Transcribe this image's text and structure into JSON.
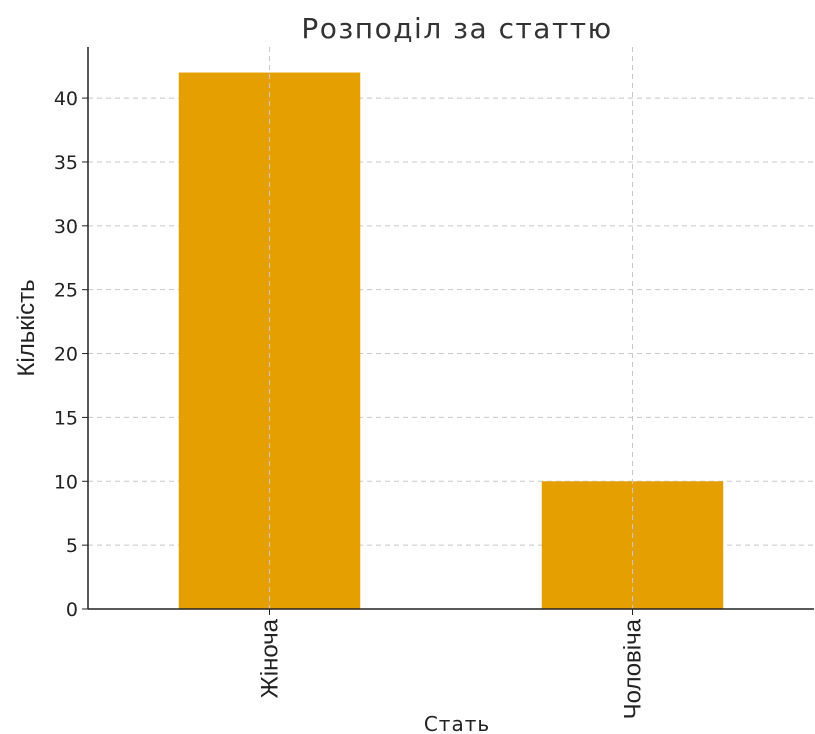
{
  "chart_data": {
    "type": "bar",
    "title": "Розподіл за статтю",
    "xlabel": "Стать",
    "ylabel": "Кількість",
    "categories": [
      "Жіноча",
      "Чоловіча"
    ],
    "values": [
      42,
      10
    ],
    "ylim": [
      0,
      44
    ],
    "yticks": [
      0,
      5,
      10,
      15,
      20,
      25,
      30,
      35,
      40
    ],
    "grid": true,
    "legend": "none",
    "bar_color": "#E69F00"
  }
}
